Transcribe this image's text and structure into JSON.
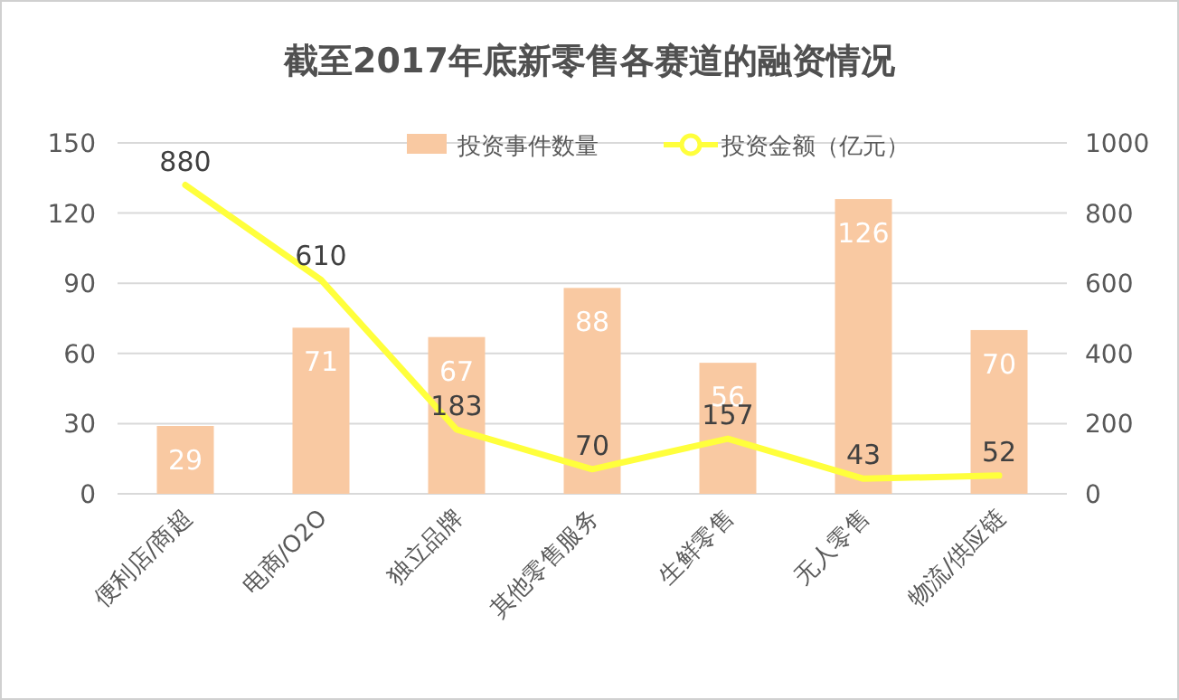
{
  "chart_data": {
    "type": "bar",
    "title": "截至2017年底新零售各赛道的融资情况",
    "categories": [
      "便利店/商超",
      "电商/O2O",
      "独立品牌",
      "其他零售服务",
      "生鲜零售",
      "无人零售",
      "物流/供应链"
    ],
    "series": [
      {
        "name": "投资事件数量",
        "type": "bar",
        "color": "#f9c9a2",
        "values": [
          29,
          71,
          67,
          88,
          56,
          126,
          70
        ]
      },
      {
        "name": "投资金额（亿元）",
        "type": "line",
        "axis": "y2",
        "color": "#ffff3c",
        "values": [
          880,
          610,
          183,
          70,
          157,
          43,
          52
        ]
      }
    ],
    "ylim": [
      0,
      150
    ],
    "yticks": [
      0,
      30,
      60,
      90,
      120,
      150
    ],
    "y2lim": [
      0,
      1000
    ],
    "y2ticks": [
      0,
      200,
      400,
      600,
      800,
      1000
    ],
    "grid": "y",
    "legend": "top",
    "data_labels": true
  }
}
